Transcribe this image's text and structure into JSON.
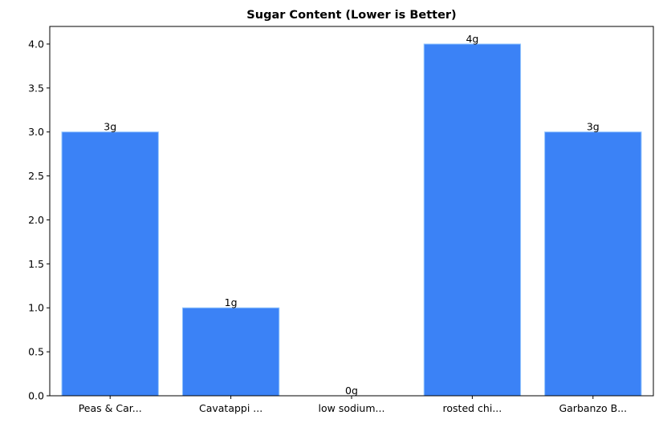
{
  "chart_data": {
    "type": "bar",
    "title": "Sugar Content (Lower is Better)",
    "categories": [
      "Peas & Car...",
      "Cavatappi ...",
      "low sodium...",
      "rosted chi...",
      "Garbanzo B..."
    ],
    "values": [
      3,
      1,
      0,
      4,
      3
    ],
    "value_labels": [
      "3g",
      "1g",
      "0g",
      "4g",
      "3g"
    ],
    "color": "#3b82f6",
    "ylim": [
      0,
      4.2
    ],
    "yticks": [
      {
        "value": 0,
        "label": "0.0"
      },
      {
        "value": 0.5,
        "label": "0.5"
      },
      {
        "value": 1,
        "label": "1.0"
      },
      {
        "value": 1.5,
        "label": "1.5"
      },
      {
        "value": 2,
        "label": "2.0"
      },
      {
        "value": 2.5,
        "label": "2.5"
      },
      {
        "value": 3,
        "label": "3.0"
      },
      {
        "value": 3.5,
        "label": "3.5"
      },
      {
        "value": 4,
        "label": "4.0"
      }
    ],
    "grid": false
  }
}
